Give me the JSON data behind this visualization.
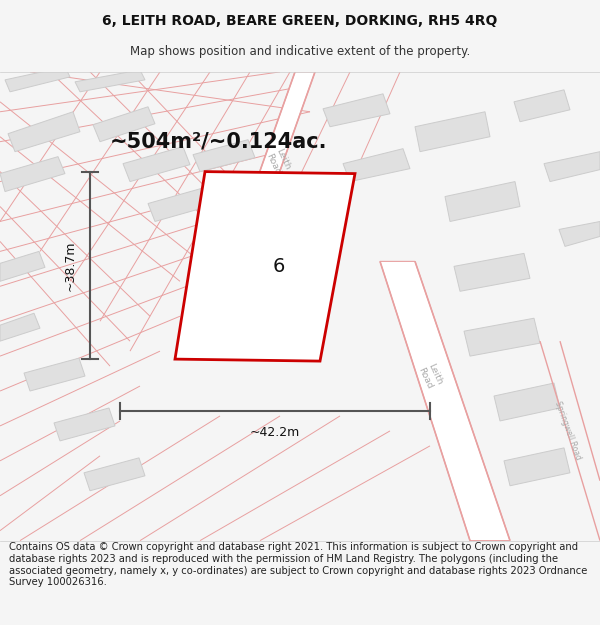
{
  "title_line1": "6, LEITH ROAD, BEARE GREEN, DORKING, RH5 4RQ",
  "title_line2": "Map shows position and indicative extent of the property.",
  "area_label": "~504m²/~0.124ac.",
  "property_number": "6",
  "dim_width": "~42.2m",
  "dim_height": "~38.7m",
  "footer_text": "Contains OS data © Crown copyright and database right 2021. This information is subject to Crown copyright and database rights 2023 and is reproduced with the permission of HM Land Registry. The polygons (including the associated geometry, namely x, y co-ordinates) are subject to Crown copyright and database rights 2023 Ordnance Survey 100026316.",
  "bg_color": "#f5f5f5",
  "map_bg": "#fafafa",
  "road_outline_color": "#e8a0a0",
  "road_fill_color": "#ffffff",
  "building_fill": "#e0e0e0",
  "building_edge": "#cccccc",
  "property_fill": "#ffffff",
  "property_edge": "#cc0000",
  "dim_color": "#555555",
  "road_label_color": "#aaaaaa",
  "title_fontsize": 10,
  "subtitle_fontsize": 8.5,
  "area_fontsize": 15,
  "prop_num_fontsize": 14,
  "dim_fontsize": 9,
  "footer_fontsize": 7.2
}
